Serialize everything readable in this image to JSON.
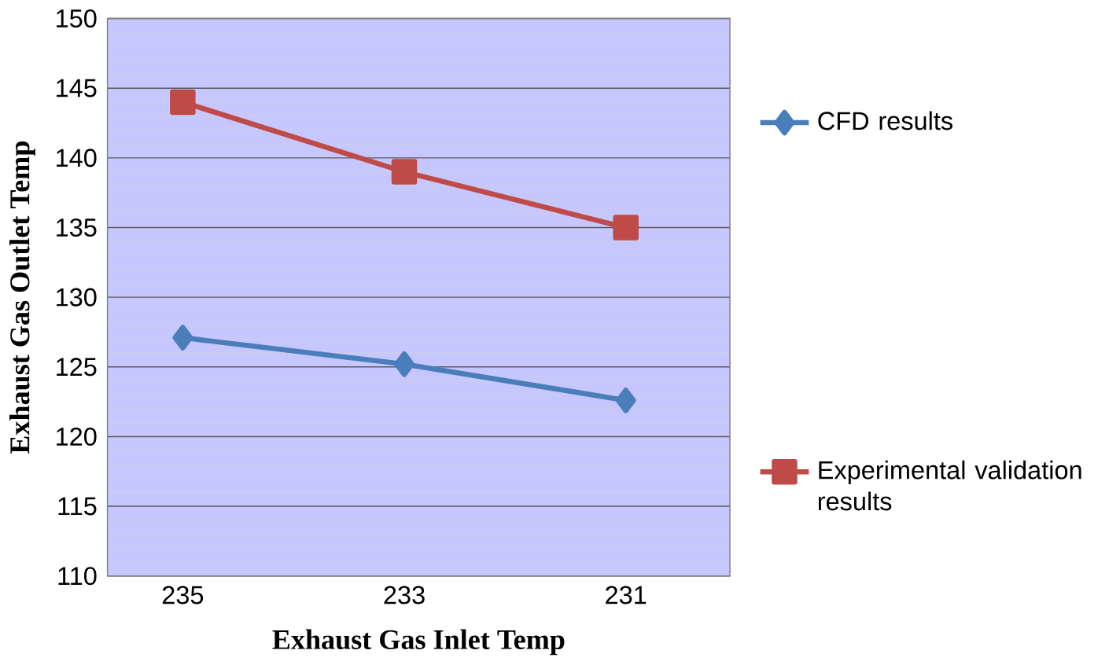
{
  "chart_data": {
    "type": "line",
    "xlabel": "Exhaust  Gas Inlet Temp",
    "ylabel": "Exhaust  Gas Outlet Temp",
    "categories": [
      "235",
      "233",
      "231"
    ],
    "series": [
      {
        "name": "CFD results",
        "color": "#4a7ebb",
        "marker": "diamond",
        "values": [
          127.1,
          125.2,
          122.6
        ]
      },
      {
        "name": "Experimental validation results",
        "color": "#be4b48",
        "marker": "square",
        "values": [
          144,
          139,
          135
        ]
      }
    ],
    "ylim": [
      110,
      150
    ],
    "yticks": [
      110,
      115,
      120,
      125,
      130,
      135,
      140,
      145,
      150
    ],
    "grid": "y",
    "legend": "right",
    "line_style": "solid"
  }
}
